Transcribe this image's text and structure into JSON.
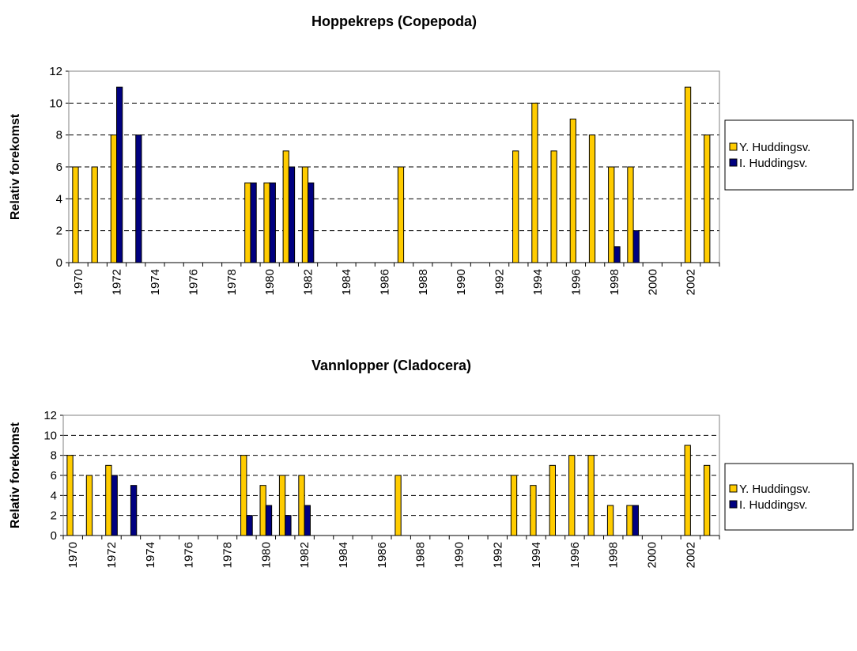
{
  "chart_data": [
    {
      "type": "bar",
      "title": "Hoppekreps (Copepoda)",
      "y_label": "Relativ forekomst",
      "categories": [
        "1970",
        null,
        "1972",
        null,
        "1974",
        null,
        "1976",
        null,
        "1978",
        null,
        "1980",
        null,
        "1982",
        null,
        "1984",
        null,
        "1986",
        null,
        "1988",
        null,
        "1990",
        null,
        "1992",
        null,
        "1994",
        null,
        "1996",
        null,
        "1998",
        null,
        "2000",
        null,
        "2002",
        null
      ],
      "series": [
        {
          "name": "Y. Huddingsv.",
          "color": "#ffcc00",
          "values": [
            6,
            6,
            8,
            null,
            null,
            null,
            null,
            null,
            null,
            5,
            5,
            7,
            6,
            null,
            null,
            null,
            null,
            6,
            null,
            null,
            null,
            null,
            null,
            7,
            10,
            7,
            9,
            8,
            6,
            6,
            null,
            null,
            11,
            8
          ]
        },
        {
          "name": "I. Huddingsv.",
          "color": "#000080",
          "values": [
            null,
            null,
            11,
            8,
            null,
            null,
            null,
            null,
            null,
            5,
            5,
            6,
            5,
            null,
            null,
            null,
            null,
            null,
            null,
            null,
            null,
            null,
            null,
            null,
            null,
            null,
            null,
            null,
            1,
            2,
            null,
            null,
            null,
            null
          ]
        }
      ],
      "ylim": [
        0,
        12
      ],
      "yticks": [
        0,
        2,
        4,
        6,
        8,
        10,
        12
      ],
      "grid": true,
      "legend": "right"
    },
    {
      "type": "bar",
      "title": "Vannlopper (Cladocera)",
      "y_label": "Relativ forekomst",
      "categories": [
        "1970",
        null,
        "1972",
        null,
        "1974",
        null,
        "1976",
        null,
        "1978",
        null,
        "1980",
        null,
        "1982",
        null,
        "1984",
        null,
        "1986",
        null,
        "1988",
        null,
        "1990",
        null,
        "1992",
        null,
        "1994",
        null,
        "1996",
        null,
        "1998",
        null,
        "2000",
        null,
        "2002",
        null
      ],
      "series": [
        {
          "name": "Y. Huddingsv.",
          "color": "#ffcc00",
          "values": [
            8,
            6,
            7,
            null,
            null,
            null,
            null,
            null,
            null,
            8,
            5,
            6,
            6,
            null,
            null,
            null,
            null,
            6,
            null,
            null,
            null,
            null,
            null,
            6,
            5,
            7,
            8,
            8,
            3,
            3,
            null,
            null,
            9,
            7
          ]
        },
        {
          "name": "I. Huddingsv.",
          "color": "#000080",
          "values": [
            null,
            null,
            6,
            5,
            null,
            null,
            null,
            null,
            null,
            2,
            3,
            2,
            3,
            null,
            null,
            null,
            null,
            null,
            null,
            null,
            null,
            null,
            null,
            null,
            null,
            null,
            null,
            null,
            null,
            3,
            null,
            null,
            null,
            null
          ]
        }
      ],
      "ylim": [
        0,
        12
      ],
      "yticks": [
        0,
        2,
        4,
        6,
        8,
        10,
        12
      ],
      "grid": true,
      "legend": "right"
    }
  ]
}
